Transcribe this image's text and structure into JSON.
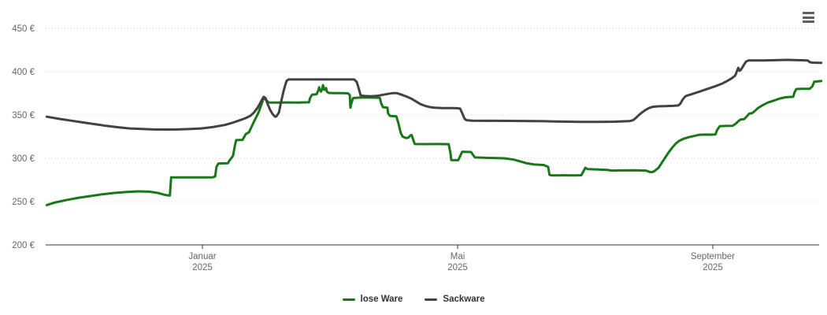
{
  "chart": {
    "menu_icon": "hamburger-icon",
    "background": "#ffffff"
  },
  "legend": {
    "position": "bottom-center"
  },
  "chart_data": {
    "type": "line",
    "title": "",
    "xlabel": "",
    "ylabel": "",
    "grid": "dotted horizontal gridlines",
    "legend_position": "bottom-center",
    "x_axis": {
      "unit": "time, months relative to the Januar-2025 tick (Januar=0, Mai=4, September=8)",
      "range": [
        -2.44,
        9.73
      ],
      "ticks": [
        {
          "label": "Januar",
          "sublabel": "2025",
          "x": 0
        },
        {
          "label": "Mai",
          "sublabel": "2025",
          "x": 4
        },
        {
          "label": "September",
          "sublabel": "2025",
          "x": 8
        }
      ],
      "label_color": "#666666",
      "axis_line_color": "#333333"
    },
    "y_axis": {
      "unit": "EUR",
      "range": [
        200,
        462
      ],
      "ticks": [
        {
          "value": 450,
          "label": "450 €"
        },
        {
          "value": 400,
          "label": "400 €"
        },
        {
          "value": 350,
          "label": "350 €"
        },
        {
          "value": 300,
          "label": "300 €"
        },
        {
          "value": 250,
          "label": "250 €"
        },
        {
          "value": 200,
          "label": "200 €"
        }
      ],
      "gridline_color": "#cccccc",
      "label_color": "#666666"
    },
    "series": [
      {
        "name": "lose Ware",
        "color": "#187818",
        "points": [
          [
            -2.44,
            246
          ],
          [
            -2.31,
            249
          ],
          [
            -2.12,
            252
          ],
          [
            -1.94,
            254.5
          ],
          [
            -1.75,
            256.5
          ],
          [
            -1.57,
            258.5
          ],
          [
            -1.38,
            260
          ],
          [
            -1.2,
            261
          ],
          [
            -1.01,
            261.8
          ],
          [
            -0.83,
            261.5
          ],
          [
            -0.7,
            260
          ],
          [
            -0.6,
            258
          ],
          [
            -0.53,
            257
          ],
          [
            -0.51,
            257.2
          ],
          [
            -0.49,
            278
          ],
          [
            -0.33,
            278
          ],
          [
            -0.09,
            278
          ],
          [
            0.16,
            278
          ],
          [
            0.2,
            279
          ],
          [
            0.22,
            290
          ],
          [
            0.25,
            294
          ],
          [
            0.4,
            294.3
          ],
          [
            0.42,
            297
          ],
          [
            0.46,
            300.8
          ],
          [
            0.48,
            303
          ],
          [
            0.51,
            315
          ],
          [
            0.53,
            321
          ],
          [
            0.63,
            321.3
          ],
          [
            0.65,
            324
          ],
          [
            0.68,
            328
          ],
          [
            0.73,
            330
          ],
          [
            0.8,
            341
          ],
          [
            0.88,
            353
          ],
          [
            0.94,
            365
          ],
          [
            0.96,
            370.5
          ],
          [
            1.0,
            367
          ],
          [
            1.04,
            364.5
          ],
          [
            1.15,
            364.3
          ],
          [
            1.33,
            364.5
          ],
          [
            1.52,
            364.4
          ],
          [
            1.67,
            364.6
          ],
          [
            1.69,
            370
          ],
          [
            1.72,
            373.5
          ],
          [
            1.79,
            374
          ],
          [
            1.82,
            379
          ],
          [
            1.83,
            382
          ],
          [
            1.84,
            379
          ],
          [
            1.86,
            377
          ],
          [
            1.88,
            381
          ],
          [
            1.89,
            384.5
          ],
          [
            1.91,
            379
          ],
          [
            1.94,
            381
          ],
          [
            1.95,
            377
          ],
          [
            1.98,
            375.5
          ],
          [
            2.07,
            375.3
          ],
          [
            2.2,
            375.2
          ],
          [
            2.28,
            375
          ],
          [
            2.31,
            373
          ],
          [
            2.32,
            358.5
          ],
          [
            2.33,
            362
          ],
          [
            2.36,
            369.5
          ],
          [
            2.44,
            370
          ],
          [
            2.57,
            370.2
          ],
          [
            2.69,
            370
          ],
          [
            2.78,
            369.8
          ],
          [
            2.8,
            364
          ],
          [
            2.83,
            359
          ],
          [
            2.9,
            358.5
          ],
          [
            2.91,
            352
          ],
          [
            2.94,
            349
          ],
          [
            3.04,
            348.5
          ],
          [
            3.07,
            341
          ],
          [
            3.11,
            329
          ],
          [
            3.14,
            325
          ],
          [
            3.19,
            323.5
          ],
          [
            3.23,
            323.8
          ],
          [
            3.26,
            326.5
          ],
          [
            3.28,
            326.8
          ],
          [
            3.31,
            320
          ],
          [
            3.33,
            316.5
          ],
          [
            3.49,
            316.4
          ],
          [
            3.68,
            316.5
          ],
          [
            3.86,
            316.3
          ],
          [
            3.89,
            305
          ],
          [
            3.9,
            298
          ],
          [
            4.01,
            297.8
          ],
          [
            4.05,
            304
          ],
          [
            4.07,
            307.5
          ],
          [
            4.21,
            307.3
          ],
          [
            4.25,
            303
          ],
          [
            4.27,
            301
          ],
          [
            4.48,
            300.5
          ],
          [
            4.73,
            300
          ],
          [
            4.88,
            298.5
          ],
          [
            4.98,
            296.5
          ],
          [
            5.07,
            294.5
          ],
          [
            5.2,
            292.8
          ],
          [
            5.35,
            292.3
          ],
          [
            5.42,
            290
          ],
          [
            5.44,
            281
          ],
          [
            5.47,
            280.3
          ],
          [
            5.65,
            280.4
          ],
          [
            5.84,
            280.3
          ],
          [
            5.94,
            280.5
          ],
          [
            5.98,
            286
          ],
          [
            6.0,
            289
          ],
          [
            6.04,
            287.5
          ],
          [
            6.21,
            287
          ],
          [
            6.36,
            286.5
          ],
          [
            6.41,
            285.8
          ],
          [
            6.58,
            286
          ],
          [
            6.77,
            286.2
          ],
          [
            6.95,
            285.8
          ],
          [
            7.01,
            284.3
          ],
          [
            7.05,
            284
          ],
          [
            7.09,
            285.5
          ],
          [
            7.15,
            289
          ],
          [
            7.22,
            297
          ],
          [
            7.3,
            306
          ],
          [
            7.36,
            312
          ],
          [
            7.42,
            317
          ],
          [
            7.47,
            320
          ],
          [
            7.54,
            322.5
          ],
          [
            7.63,
            324.5
          ],
          [
            7.72,
            326
          ],
          [
            7.79,
            327.2
          ],
          [
            7.88,
            327.4
          ],
          [
            7.98,
            327.3
          ],
          [
            8.04,
            327.5
          ],
          [
            8.07,
            333
          ],
          [
            8.11,
            337
          ],
          [
            8.21,
            337.4
          ],
          [
            8.31,
            337.5
          ],
          [
            8.36,
            340
          ],
          [
            8.41,
            343.5
          ],
          [
            8.44,
            344.8
          ],
          [
            8.49,
            345.2
          ],
          [
            8.53,
            348
          ],
          [
            8.57,
            351.5
          ],
          [
            8.62,
            352.3
          ],
          [
            8.65,
            354
          ],
          [
            8.7,
            357.5
          ],
          [
            8.75,
            360
          ],
          [
            8.8,
            362
          ],
          [
            8.86,
            364.3
          ],
          [
            8.93,
            366
          ],
          [
            8.99,
            367.5
          ],
          [
            9.05,
            369
          ],
          [
            9.14,
            370.5
          ],
          [
            9.21,
            370.8
          ],
          [
            9.26,
            371
          ],
          [
            9.28,
            376
          ],
          [
            9.31,
            380
          ],
          [
            9.42,
            380.2
          ],
          [
            9.52,
            380.3
          ],
          [
            9.56,
            383
          ],
          [
            9.59,
            388.5
          ],
          [
            9.67,
            389
          ],
          [
            9.7,
            389.2
          ]
        ]
      },
      {
        "name": "Sackware",
        "color": "#424242",
        "points": [
          [
            -2.44,
            348
          ],
          [
            -2.25,
            345.5
          ],
          [
            -2.06,
            343.5
          ],
          [
            -1.88,
            341.5
          ],
          [
            -1.69,
            339.5
          ],
          [
            -1.51,
            337.5
          ],
          [
            -1.32,
            335.8
          ],
          [
            -1.14,
            334.5
          ],
          [
            -0.95,
            333.8
          ],
          [
            -0.77,
            333.3
          ],
          [
            -0.58,
            333.2
          ],
          [
            -0.4,
            333.3
          ],
          [
            -0.21,
            333.7
          ],
          [
            -0.02,
            334.5
          ],
          [
            0.16,
            336
          ],
          [
            0.35,
            338.5
          ],
          [
            0.47,
            341
          ],
          [
            0.59,
            344
          ],
          [
            0.68,
            346.5
          ],
          [
            0.75,
            349
          ],
          [
            0.81,
            353
          ],
          [
            0.86,
            358
          ],
          [
            0.9,
            363
          ],
          [
            0.94,
            368.5
          ],
          [
            0.96,
            371
          ],
          [
            0.99,
            369.5
          ],
          [
            1.02,
            363
          ],
          [
            1.06,
            356
          ],
          [
            1.1,
            351
          ],
          [
            1.14,
            348
          ],
          [
            1.16,
            348.5
          ],
          [
            1.2,
            353
          ],
          [
            1.23,
            364
          ],
          [
            1.27,
            377
          ],
          [
            1.3,
            385
          ],
          [
            1.32,
            389.5
          ],
          [
            1.35,
            391
          ],
          [
            1.52,
            391
          ],
          [
            1.77,
            391
          ],
          [
            2.01,
            391
          ],
          [
            2.26,
            391
          ],
          [
            2.38,
            391
          ],
          [
            2.42,
            388
          ],
          [
            2.46,
            378
          ],
          [
            2.48,
            372.5
          ],
          [
            2.53,
            372
          ],
          [
            2.63,
            371.6
          ],
          [
            2.73,
            372
          ],
          [
            2.81,
            373
          ],
          [
            2.9,
            374.3
          ],
          [
            2.98,
            375.2
          ],
          [
            3.05,
            375.2
          ],
          [
            3.12,
            373.5
          ],
          [
            3.2,
            371.3
          ],
          [
            3.27,
            369
          ],
          [
            3.35,
            365.5
          ],
          [
            3.42,
            362.5
          ],
          [
            3.49,
            360.5
          ],
          [
            3.57,
            359
          ],
          [
            3.64,
            358.4
          ],
          [
            3.77,
            358
          ],
          [
            3.89,
            357.9
          ],
          [
            3.99,
            357.8
          ],
          [
            4.04,
            357.4
          ],
          [
            4.06,
            354
          ],
          [
            4.09,
            349
          ],
          [
            4.11,
            345.5
          ],
          [
            4.14,
            344
          ],
          [
            4.23,
            343.5
          ],
          [
            4.42,
            343.3
          ],
          [
            4.6,
            343.3
          ],
          [
            4.79,
            343.2
          ],
          [
            4.98,
            343.1
          ],
          [
            5.16,
            343
          ],
          [
            5.35,
            342.8
          ],
          [
            5.53,
            342.5
          ],
          [
            5.72,
            342.3
          ],
          [
            5.9,
            342.1
          ],
          [
            6.09,
            342
          ],
          [
            6.27,
            342.1
          ],
          [
            6.46,
            342.3
          ],
          [
            6.58,
            342.6
          ],
          [
            6.7,
            343
          ],
          [
            6.75,
            344
          ],
          [
            6.8,
            347
          ],
          [
            6.85,
            350.5
          ],
          [
            6.9,
            353.5
          ],
          [
            6.95,
            356
          ],
          [
            7.0,
            358
          ],
          [
            7.05,
            359.3
          ],
          [
            7.14,
            360
          ],
          [
            7.26,
            360.3
          ],
          [
            7.38,
            360.5
          ],
          [
            7.46,
            361
          ],
          [
            7.49,
            363
          ],
          [
            7.53,
            368
          ],
          [
            7.57,
            371.5
          ],
          [
            7.6,
            372.5
          ],
          [
            7.67,
            374
          ],
          [
            7.75,
            376
          ],
          [
            7.85,
            378.5
          ],
          [
            7.95,
            381
          ],
          [
            8.05,
            383.5
          ],
          [
            8.14,
            386
          ],
          [
            8.22,
            389
          ],
          [
            8.3,
            392.5
          ],
          [
            8.35,
            395.5
          ],
          [
            8.37,
            399
          ],
          [
            8.4,
            404.5
          ],
          [
            8.42,
            401
          ],
          [
            8.44,
            402
          ],
          [
            8.48,
            407
          ],
          [
            8.52,
            411.5
          ],
          [
            8.56,
            413
          ],
          [
            8.68,
            412.9
          ],
          [
            8.8,
            413
          ],
          [
            8.93,
            413.2
          ],
          [
            9.05,
            413.4
          ],
          [
            9.17,
            413.6
          ],
          [
            9.27,
            413.4
          ],
          [
            9.4,
            413.2
          ],
          [
            9.49,
            412.8
          ],
          [
            9.52,
            411
          ],
          [
            9.56,
            410.5
          ],
          [
            9.64,
            410.3
          ],
          [
            9.7,
            410.3
          ]
        ]
      }
    ]
  }
}
